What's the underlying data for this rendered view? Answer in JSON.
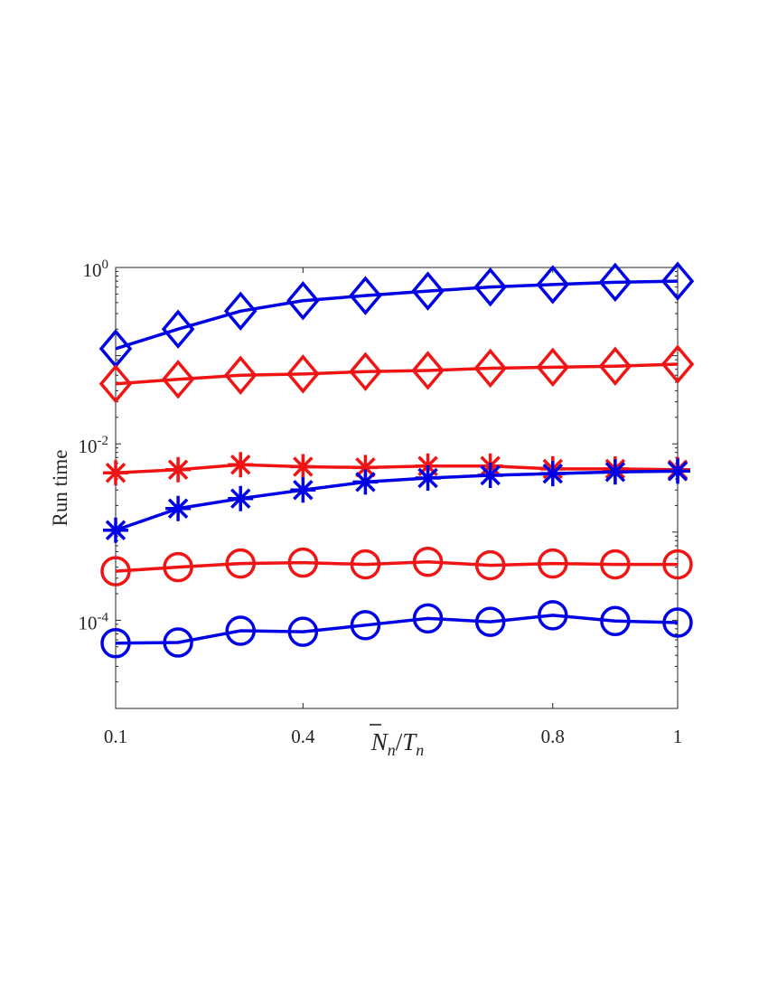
{
  "chart_data": {
    "type": "line",
    "title": "",
    "xlabel_parts": {
      "n1": "N",
      "sub1": "n",
      "slash": "/",
      "t": "T",
      "sub2": "n"
    },
    "ylabel": "Run time",
    "xlim": [
      0.1,
      1
    ],
    "ylim_log10": [
      -5,
      0
    ],
    "yscale": "log",
    "grid": false,
    "legend": "none",
    "x": [
      0.1,
      0.2,
      0.3,
      0.4,
      0.5,
      0.6,
      0.7,
      0.8,
      0.9,
      1.0
    ],
    "xticks": [
      0.1,
      0.4,
      0.8,
      1
    ],
    "xtick_labels": [
      "0.1",
      "0.4",
      "0.8",
      "1"
    ],
    "yticks": [
      {
        "value": 1,
        "base": "10",
        "exp": "0"
      },
      {
        "value": 0.01,
        "base": "10",
        "exp": "-2"
      },
      {
        "value": 0.0001,
        "base": "10",
        "exp": "-4"
      }
    ],
    "series": [
      {
        "marker": "diamond",
        "color": "#0000e6",
        "values": [
          0.12,
          0.2,
          0.32,
          0.42,
          0.48,
          0.54,
          0.6,
          0.64,
          0.68,
          0.7
        ]
      },
      {
        "marker": "diamond",
        "color": "#f01414",
        "values": [
          0.048,
          0.054,
          0.06,
          0.062,
          0.066,
          0.068,
          0.072,
          0.074,
          0.076,
          0.08
        ]
      },
      {
        "marker": "asterisk",
        "color": "#f01414",
        "values": [
          0.0047,
          0.0051,
          0.0058,
          0.0055,
          0.0054,
          0.0056,
          0.0056,
          0.0052,
          0.0052,
          0.0051
        ]
      },
      {
        "marker": "asterisk",
        "color": "#0000e6",
        "values": [
          0.00105,
          0.00185,
          0.0024,
          0.003,
          0.0037,
          0.0041,
          0.0044,
          0.0046,
          0.0048,
          0.0049
        ]
      },
      {
        "marker": "circle",
        "color": "#f01414",
        "values": [
          0.00036,
          0.0004,
          0.00044,
          0.00045,
          0.00043,
          0.00046,
          0.00042,
          0.00044,
          0.00043,
          0.00043
        ]
      },
      {
        "marker": "circle",
        "color": "#0000e6",
        "values": [
          5.5e-05,
          5.6e-05,
          7.6e-05,
          7.4e-05,
          8.8e-05,
          0.000105,
          9.6e-05,
          0.000114,
          9.8e-05,
          9.4e-05
        ]
      }
    ]
  }
}
